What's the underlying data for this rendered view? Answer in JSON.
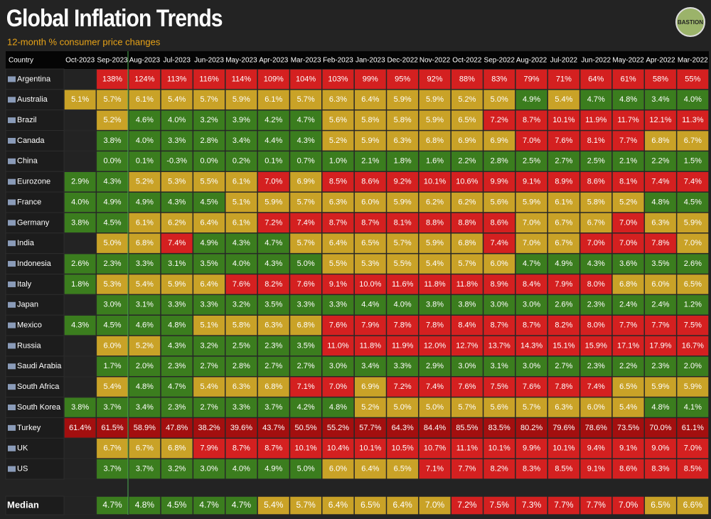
{
  "header": {
    "title": "Global Inflation Trends",
    "subtitle": "12-month % consumer price changes",
    "logo": "BASTION"
  },
  "table": {
    "columns": [
      "Country",
      "Oct-2023",
      "Sep-2023",
      "Aug-2023",
      "Jul-2023",
      "Jun-2023",
      "May-2023",
      "Apr-2023",
      "Mar-2023",
      "Feb-2023",
      "Jan-2023",
      "Dec-2022",
      "Nov-2022",
      "Oct-2022",
      "Sep-2022",
      "Aug-2022",
      "Jul-2022",
      "Jun-2022",
      "May-2022",
      "Apr-2022",
      "Mar-2022"
    ],
    "rows": [
      {
        "country": "Argentina",
        "values": [
          null,
          "138%",
          "124%",
          "113%",
          "116%",
          "114%",
          "109%",
          "104%",
          "103%",
          "99%",
          "95%",
          "92%",
          "88%",
          "83%",
          "79%",
          "71%",
          "64%",
          "61%",
          "58%",
          "55%"
        ],
        "colors": [
          null,
          "#d42020",
          "#d42020",
          "#d42020",
          "#d42020",
          "#d42020",
          "#d42020",
          "#d42020",
          "#d42020",
          "#d42020",
          "#d42020",
          "#d42020",
          "#d42020",
          "#d42020",
          "#d42020",
          "#d42020",
          "#d42020",
          "#d42020",
          "#d42020",
          "#d42020"
        ]
      },
      {
        "country": "Australia",
        "values": [
          "5.1%",
          "5.7%",
          "6.1%",
          "5.4%",
          "5.7%",
          "5.9%",
          "6.1%",
          "5.7%",
          "6.3%",
          "6.4%",
          "5.9%",
          "5.9%",
          "5.2%",
          "5.0%",
          "4.9%",
          "5.4%",
          "4.7%",
          "4.8%",
          "3.4%",
          "4.0%"
        ],
        "colors": [
          "#c9a227",
          "#c9a227",
          "#c9a227",
          "#c9a227",
          "#c9a227",
          "#c9a227",
          "#c9a227",
          "#c9a227",
          "#c9a227",
          "#c9a227",
          "#c9a227",
          "#c9a227",
          "#c9a227",
          "#c9a227",
          "#3b7d1e",
          "#c9a227",
          "#3b7d1e",
          "#3b7d1e",
          "#3b7d1e",
          "#3b7d1e"
        ]
      },
      {
        "country": "Brazil",
        "values": [
          null,
          "5.2%",
          "4.6%",
          "4.0%",
          "3.2%",
          "3.9%",
          "4.2%",
          "4.7%",
          "5.6%",
          "5.8%",
          "5.8%",
          "5.9%",
          "6.5%",
          "7.2%",
          "8.7%",
          "10.1%",
          "11.9%",
          "11.7%",
          "12.1%",
          "11.3%"
        ],
        "colors": [
          null,
          "#c9a227",
          "#3b7d1e",
          "#3b7d1e",
          "#3b7d1e",
          "#3b7d1e",
          "#3b7d1e",
          "#3b7d1e",
          "#c9a227",
          "#c9a227",
          "#c9a227",
          "#c9a227",
          "#c9a227",
          "#d42020",
          "#d42020",
          "#d42020",
          "#d42020",
          "#d42020",
          "#d42020",
          "#d42020"
        ]
      },
      {
        "country": "Canada",
        "values": [
          null,
          "3.8%",
          "4.0%",
          "3.3%",
          "2.8%",
          "3.4%",
          "4.4%",
          "4.3%",
          "5.2%",
          "5.9%",
          "6.3%",
          "6.8%",
          "6.9%",
          "6.9%",
          "7.0%",
          "7.6%",
          "8.1%",
          "7.7%",
          "6.8%",
          "6.7%"
        ],
        "colors": [
          null,
          "#3b7d1e",
          "#3b7d1e",
          "#3b7d1e",
          "#3b7d1e",
          "#3b7d1e",
          "#3b7d1e",
          "#3b7d1e",
          "#c9a227",
          "#c9a227",
          "#c9a227",
          "#c9a227",
          "#c9a227",
          "#c9a227",
          "#d42020",
          "#d42020",
          "#d42020",
          "#d42020",
          "#c9a227",
          "#c9a227"
        ]
      },
      {
        "country": "China",
        "values": [
          null,
          "0.0%",
          "0.1%",
          "-0.3%",
          "0.0%",
          "0.2%",
          "0.1%",
          "0.7%",
          "1.0%",
          "2.1%",
          "1.8%",
          "1.6%",
          "2.2%",
          "2.8%",
          "2.5%",
          "2.7%",
          "2.5%",
          "2.1%",
          "2.2%",
          "1.5%"
        ],
        "colors": [
          null,
          "#3b7d1e",
          "#3b7d1e",
          "#3b7d1e",
          "#3b7d1e",
          "#3b7d1e",
          "#3b7d1e",
          "#3b7d1e",
          "#3b7d1e",
          "#3b7d1e",
          "#3b7d1e",
          "#3b7d1e",
          "#3b7d1e",
          "#3b7d1e",
          "#3b7d1e",
          "#3b7d1e",
          "#3b7d1e",
          "#3b7d1e",
          "#3b7d1e",
          "#3b7d1e"
        ]
      },
      {
        "country": "Eurozone",
        "values": [
          "2.9%",
          "4.3%",
          "5.2%",
          "5.3%",
          "5.5%",
          "6.1%",
          "7.0%",
          "6.9%",
          "8.5%",
          "8.6%",
          "9.2%",
          "10.1%",
          "10.6%",
          "9.9%",
          "9.1%",
          "8.9%",
          "8.6%",
          "8.1%",
          "7.4%",
          "7.4%"
        ],
        "colors": [
          "#3b7d1e",
          "#3b7d1e",
          "#c9a227",
          "#c9a227",
          "#c9a227",
          "#c9a227",
          "#d42020",
          "#c9a227",
          "#d42020",
          "#d42020",
          "#d42020",
          "#d42020",
          "#d42020",
          "#d42020",
          "#d42020",
          "#d42020",
          "#d42020",
          "#d42020",
          "#d42020",
          "#d42020"
        ]
      },
      {
        "country": "France",
        "values": [
          "4.0%",
          "4.9%",
          "4.9%",
          "4.3%",
          "4.5%",
          "5.1%",
          "5.9%",
          "5.7%",
          "6.3%",
          "6.0%",
          "5.9%",
          "6.2%",
          "6.2%",
          "5.6%",
          "5.9%",
          "6.1%",
          "5.8%",
          "5.2%",
          "4.8%",
          "4.5%"
        ],
        "colors": [
          "#3b7d1e",
          "#3b7d1e",
          "#3b7d1e",
          "#3b7d1e",
          "#3b7d1e",
          "#c9a227",
          "#c9a227",
          "#c9a227",
          "#c9a227",
          "#c9a227",
          "#c9a227",
          "#c9a227",
          "#c9a227",
          "#c9a227",
          "#c9a227",
          "#c9a227",
          "#c9a227",
          "#c9a227",
          "#3b7d1e",
          "#3b7d1e"
        ]
      },
      {
        "country": "Germany",
        "values": [
          "3.8%",
          "4.5%",
          "6.1%",
          "6.2%",
          "6.4%",
          "6.1%",
          "7.2%",
          "7.4%",
          "8.7%",
          "8.7%",
          "8.1%",
          "8.8%",
          "8.8%",
          "8.6%",
          "7.0%",
          "6.7%",
          "6.7%",
          "7.0%",
          "6.3%",
          "5.9%"
        ],
        "colors": [
          "#3b7d1e",
          "#3b7d1e",
          "#c9a227",
          "#c9a227",
          "#c9a227",
          "#c9a227",
          "#d42020",
          "#d42020",
          "#d42020",
          "#d42020",
          "#d42020",
          "#d42020",
          "#d42020",
          "#d42020",
          "#c9a227",
          "#c9a227",
          "#c9a227",
          "#d42020",
          "#c9a227",
          "#c9a227"
        ]
      },
      {
        "country": "India",
        "values": [
          null,
          "5.0%",
          "6.8%",
          "7.4%",
          "4.9%",
          "4.3%",
          "4.7%",
          "5.7%",
          "6.4%",
          "6.5%",
          "5.7%",
          "5.9%",
          "6.8%",
          "7.4%",
          "7.0%",
          "6.7%",
          "7.0%",
          "7.0%",
          "7.8%",
          "7.0%"
        ],
        "colors": [
          null,
          "#c9a227",
          "#c9a227",
          "#d42020",
          "#3b7d1e",
          "#3b7d1e",
          "#3b7d1e",
          "#c9a227",
          "#c9a227",
          "#c9a227",
          "#c9a227",
          "#c9a227",
          "#c9a227",
          "#d42020",
          "#c9a227",
          "#c9a227",
          "#d42020",
          "#d42020",
          "#d42020",
          "#c9a227"
        ]
      },
      {
        "country": "Indonesia",
        "values": [
          "2.6%",
          "2.3%",
          "3.3%",
          "3.1%",
          "3.5%",
          "4.0%",
          "4.3%",
          "5.0%",
          "5.5%",
          "5.3%",
          "5.5%",
          "5.4%",
          "5.7%",
          "6.0%",
          "4.7%",
          "4.9%",
          "4.3%",
          "3.6%",
          "3.5%",
          "2.6%"
        ],
        "colors": [
          "#3b7d1e",
          "#3b7d1e",
          "#3b7d1e",
          "#3b7d1e",
          "#3b7d1e",
          "#3b7d1e",
          "#3b7d1e",
          "#3b7d1e",
          "#c9a227",
          "#c9a227",
          "#c9a227",
          "#c9a227",
          "#c9a227",
          "#c9a227",
          "#3b7d1e",
          "#3b7d1e",
          "#3b7d1e",
          "#3b7d1e",
          "#3b7d1e",
          "#3b7d1e"
        ]
      },
      {
        "country": "Italy",
        "values": [
          "1.8%",
          "5.3%",
          "5.4%",
          "5.9%",
          "6.4%",
          "7.6%",
          "8.2%",
          "7.6%",
          "9.1%",
          "10.0%",
          "11.6%",
          "11.8%",
          "11.8%",
          "8.9%",
          "8.4%",
          "7.9%",
          "8.0%",
          "6.8%",
          "6.0%",
          "6.5%"
        ],
        "colors": [
          "#3b7d1e",
          "#c9a227",
          "#c9a227",
          "#c9a227",
          "#c9a227",
          "#d42020",
          "#d42020",
          "#d42020",
          "#d42020",
          "#d42020",
          "#d42020",
          "#d42020",
          "#d42020",
          "#d42020",
          "#d42020",
          "#d42020",
          "#d42020",
          "#c9a227",
          "#c9a227",
          "#c9a227"
        ]
      },
      {
        "country": "Japan",
        "values": [
          null,
          "3.0%",
          "3.1%",
          "3.3%",
          "3.3%",
          "3.2%",
          "3.5%",
          "3.3%",
          "3.3%",
          "4.4%",
          "4.0%",
          "3.8%",
          "3.8%",
          "3.0%",
          "3.0%",
          "2.6%",
          "2.3%",
          "2.4%",
          "2.4%",
          "1.2%"
        ],
        "colors": [
          null,
          "#3b7d1e",
          "#3b7d1e",
          "#3b7d1e",
          "#3b7d1e",
          "#3b7d1e",
          "#3b7d1e",
          "#3b7d1e",
          "#3b7d1e",
          "#3b7d1e",
          "#3b7d1e",
          "#3b7d1e",
          "#3b7d1e",
          "#3b7d1e",
          "#3b7d1e",
          "#3b7d1e",
          "#3b7d1e",
          "#3b7d1e",
          "#3b7d1e",
          "#3b7d1e"
        ]
      },
      {
        "country": "Mexico",
        "values": [
          "4.3%",
          "4.5%",
          "4.6%",
          "4.8%",
          "5.1%",
          "5.8%",
          "6.3%",
          "6.8%",
          "7.6%",
          "7.9%",
          "7.8%",
          "7.8%",
          "8.4%",
          "8.7%",
          "8.7%",
          "8.2%",
          "8.0%",
          "7.7%",
          "7.7%",
          "7.5%"
        ],
        "colors": [
          "#3b7d1e",
          "#3b7d1e",
          "#3b7d1e",
          "#3b7d1e",
          "#c9a227",
          "#c9a227",
          "#c9a227",
          "#c9a227",
          "#d42020",
          "#d42020",
          "#d42020",
          "#d42020",
          "#d42020",
          "#d42020",
          "#d42020",
          "#d42020",
          "#d42020",
          "#d42020",
          "#d42020",
          "#d42020"
        ]
      },
      {
        "country": "Russia",
        "values": [
          null,
          "6.0%",
          "5.2%",
          "4.3%",
          "3.2%",
          "2.5%",
          "2.3%",
          "3.5%",
          "11.0%",
          "11.8%",
          "11.9%",
          "12.0%",
          "12.7%",
          "13.7%",
          "14.3%",
          "15.1%",
          "15.9%",
          "17.1%",
          "17.9%",
          "16.7%"
        ],
        "colors": [
          null,
          "#c9a227",
          "#c9a227",
          "#3b7d1e",
          "#3b7d1e",
          "#3b7d1e",
          "#3b7d1e",
          "#3b7d1e",
          "#d42020",
          "#d42020",
          "#d42020",
          "#d42020",
          "#d42020",
          "#d42020",
          "#d42020",
          "#d42020",
          "#d42020",
          "#d42020",
          "#d42020",
          "#d42020"
        ]
      },
      {
        "country": "Saudi Arabia",
        "values": [
          null,
          "1.7%",
          "2.0%",
          "2.3%",
          "2.7%",
          "2.8%",
          "2.7%",
          "2.7%",
          "3.0%",
          "3.4%",
          "3.3%",
          "2.9%",
          "3.0%",
          "3.1%",
          "3.0%",
          "2.7%",
          "2.3%",
          "2.2%",
          "2.3%",
          "2.0%"
        ],
        "colors": [
          null,
          "#3b7d1e",
          "#3b7d1e",
          "#3b7d1e",
          "#3b7d1e",
          "#3b7d1e",
          "#3b7d1e",
          "#3b7d1e",
          "#3b7d1e",
          "#3b7d1e",
          "#3b7d1e",
          "#3b7d1e",
          "#3b7d1e",
          "#3b7d1e",
          "#3b7d1e",
          "#3b7d1e",
          "#3b7d1e",
          "#3b7d1e",
          "#3b7d1e",
          "#3b7d1e"
        ]
      },
      {
        "country": "South Africa",
        "values": [
          null,
          "5.4%",
          "4.8%",
          "4.7%",
          "5.4%",
          "6.3%",
          "6.8%",
          "7.1%",
          "7.0%",
          "6.9%",
          "7.2%",
          "7.4%",
          "7.6%",
          "7.5%",
          "7.6%",
          "7.8%",
          "7.4%",
          "6.5%",
          "5.9%",
          "5.9%"
        ],
        "colors": [
          null,
          "#c9a227",
          "#3b7d1e",
          "#3b7d1e",
          "#c9a227",
          "#c9a227",
          "#c9a227",
          "#d42020",
          "#d42020",
          "#c9a227",
          "#d42020",
          "#d42020",
          "#d42020",
          "#d42020",
          "#d42020",
          "#d42020",
          "#d42020",
          "#c9a227",
          "#c9a227",
          "#c9a227"
        ]
      },
      {
        "country": "South Korea",
        "values": [
          "3.8%",
          "3.7%",
          "3.4%",
          "2.3%",
          "2.7%",
          "3.3%",
          "3.7%",
          "4.2%",
          "4.8%",
          "5.2%",
          "5.0%",
          "5.0%",
          "5.7%",
          "5.6%",
          "5.7%",
          "6.3%",
          "6.0%",
          "5.4%",
          "4.8%",
          "4.1%"
        ],
        "colors": [
          "#3b7d1e",
          "#3b7d1e",
          "#3b7d1e",
          "#3b7d1e",
          "#3b7d1e",
          "#3b7d1e",
          "#3b7d1e",
          "#3b7d1e",
          "#3b7d1e",
          "#c9a227",
          "#c9a227",
          "#c9a227",
          "#c9a227",
          "#c9a227",
          "#c9a227",
          "#c9a227",
          "#c9a227",
          "#c9a227",
          "#3b7d1e",
          "#3b7d1e"
        ]
      },
      {
        "country": "Turkey",
        "values": [
          "61.4%",
          "61.5%",
          "58.9%",
          "47.8%",
          "38.2%",
          "39.6%",
          "43.7%",
          "50.5%",
          "55.2%",
          "57.7%",
          "64.3%",
          "84.4%",
          "85.5%",
          "83.5%",
          "80.2%",
          "79.6%",
          "78.6%",
          "73.5%",
          "70.0%",
          "61.1%"
        ],
        "colors": [
          "#a30f0f",
          "#a30f0f",
          "#a30f0f",
          "#a30f0f",
          "#a30f0f",
          "#a30f0f",
          "#a30f0f",
          "#a30f0f",
          "#a30f0f",
          "#a30f0f",
          "#a30f0f",
          "#a30f0f",
          "#a30f0f",
          "#a30f0f",
          "#a30f0f",
          "#a30f0f",
          "#a30f0f",
          "#a30f0f",
          "#a30f0f",
          "#a30f0f"
        ]
      },
      {
        "country": "UK",
        "values": [
          null,
          "6.7%",
          "6.7%",
          "6.8%",
          "7.9%",
          "8.7%",
          "8.7%",
          "10.1%",
          "10.4%",
          "10.1%",
          "10.5%",
          "10.7%",
          "11.1%",
          "10.1%",
          "9.9%",
          "10.1%",
          "9.4%",
          "9.1%",
          "9.0%",
          "7.0%"
        ],
        "colors": [
          null,
          "#c9a227",
          "#c9a227",
          "#c9a227",
          "#d42020",
          "#d42020",
          "#d42020",
          "#d42020",
          "#d42020",
          "#d42020",
          "#d42020",
          "#d42020",
          "#d42020",
          "#d42020",
          "#d42020",
          "#d42020",
          "#d42020",
          "#d42020",
          "#d42020",
          "#d42020"
        ]
      },
      {
        "country": "US",
        "values": [
          null,
          "3.7%",
          "3.7%",
          "3.2%",
          "3.0%",
          "4.0%",
          "4.9%",
          "5.0%",
          "6.0%",
          "6.4%",
          "6.5%",
          "7.1%",
          "7.7%",
          "8.2%",
          "8.3%",
          "8.5%",
          "9.1%",
          "8.6%",
          "8.3%",
          "8.5%"
        ],
        "colors": [
          null,
          "#3b7d1e",
          "#3b7d1e",
          "#3b7d1e",
          "#3b7d1e",
          "#3b7d1e",
          "#3b7d1e",
          "#3b7d1e",
          "#c9a227",
          "#c9a227",
          "#c9a227",
          "#d42020",
          "#d42020",
          "#d42020",
          "#d42020",
          "#d42020",
          "#d42020",
          "#d42020",
          "#d42020",
          "#d42020"
        ]
      }
    ],
    "median": {
      "label": "Median",
      "values": [
        null,
        "4.7%",
        "4.8%",
        "4.5%",
        "4.7%",
        "4.7%",
        "5.4%",
        "5.7%",
        "6.4%",
        "6.5%",
        "6.4%",
        "7.0%",
        "7.2%",
        "7.5%",
        "7.3%",
        "7.7%",
        "7.7%",
        "7.0%",
        "6.5%",
        "6.6%"
      ],
      "colors": [
        null,
        "#3b7d1e",
        "#3b7d1e",
        "#3b7d1e",
        "#3b7d1e",
        "#3b7d1e",
        "#c9a227",
        "#c9a227",
        "#c9a227",
        "#c9a227",
        "#c9a227",
        "#c9a227",
        "#d42020",
        "#d42020",
        "#d42020",
        "#d42020",
        "#d42020",
        "#d42020",
        "#c9a227",
        "#c9a227"
      ]
    }
  }
}
